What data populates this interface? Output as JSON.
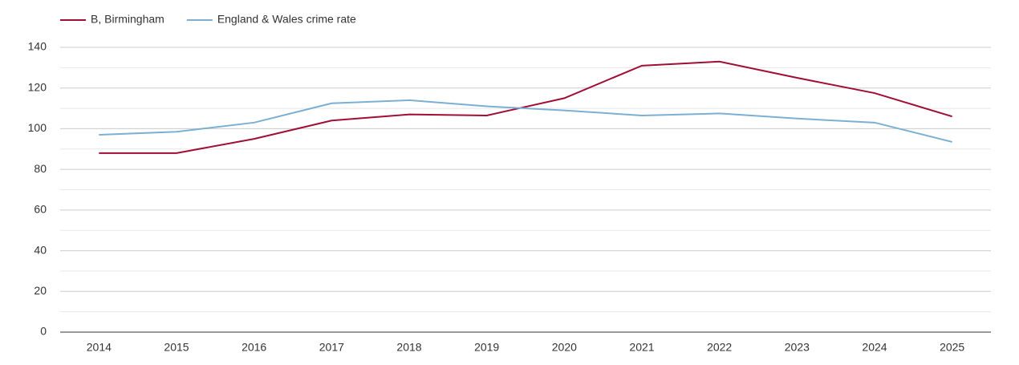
{
  "chart_data": {
    "type": "line",
    "x": [
      2014,
      2015,
      2016,
      2017,
      2018,
      2019,
      2020,
      2021,
      2022,
      2023,
      2024,
      2025
    ],
    "xlim": [
      2013.5,
      2025.5
    ],
    "xticks": [
      2014,
      2015,
      2016,
      2017,
      2018,
      2019,
      2020,
      2021,
      2022,
      2023,
      2024,
      2025
    ],
    "ylim": [
      0,
      140
    ],
    "yticks": [
      0,
      20,
      40,
      60,
      80,
      100,
      120,
      140
    ],
    "minor_yticks": [
      10,
      30,
      50,
      70,
      90,
      110,
      130
    ],
    "grid": true,
    "legend": "top-left",
    "series": [
      {
        "name": "B, Birmingham",
        "color": "#a10e35",
        "values": [
          88,
          88,
          95,
          104,
          107,
          106.5,
          115,
          131,
          133,
          125,
          117.5,
          106
        ]
      },
      {
        "name": "England & Wales crime rate",
        "color": "#7bafd4",
        "values": [
          97,
          98.5,
          103,
          112.5,
          114,
          111,
          109,
          106.5,
          107.5,
          105,
          103,
          93.5
        ]
      }
    ]
  }
}
